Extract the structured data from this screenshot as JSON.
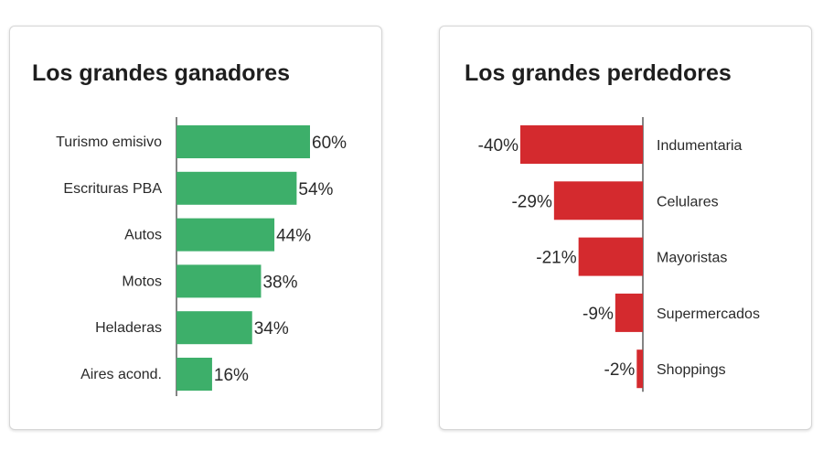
{
  "chart_data": [
    {
      "type": "bar",
      "orientation": "horizontal",
      "title": "Los grandes ganadores",
      "categories": [
        "Turismo emisivo",
        "Escrituras PBA",
        "Autos",
        "Motos",
        "Heladeras",
        "Aires acond."
      ],
      "values": [
        60,
        54,
        44,
        38,
        34,
        16
      ],
      "value_labels": [
        "60%",
        "54%",
        "44%",
        "38%",
        "34%",
        "16%"
      ],
      "unit": "%",
      "color": "#3daf6a",
      "xlim": [
        0,
        60
      ]
    },
    {
      "type": "bar",
      "orientation": "horizontal",
      "title": "Los grandes perdedores",
      "categories": [
        "Indumentaria",
        "Celulares",
        "Mayoristas",
        "Supermercados",
        "Shoppings"
      ],
      "values": [
        -40,
        -29,
        -21,
        -9,
        -2
      ],
      "value_labels": [
        "-40%",
        "-29%",
        "-21%",
        "-9%",
        "-2%"
      ],
      "unit": "%",
      "color": "#d42a2e",
      "xlim": [
        -40,
        0
      ]
    }
  ]
}
